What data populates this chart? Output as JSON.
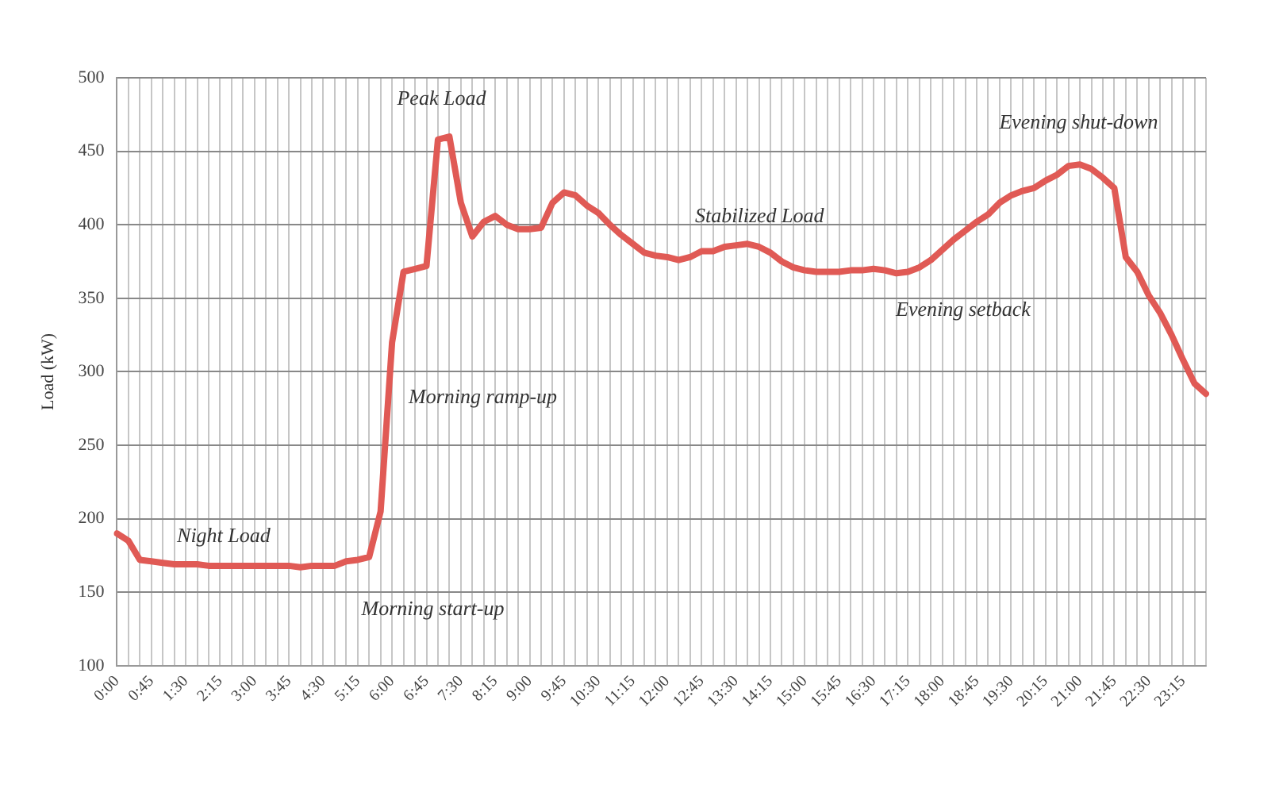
{
  "chart_data": {
    "type": "line",
    "ylabel": "Load (kW)",
    "categories": [
      "0:00",
      null,
      null,
      "0:45",
      null,
      null,
      "1:30",
      null,
      null,
      "2:15",
      null,
      null,
      "3:00",
      null,
      null,
      "3:45",
      null,
      null,
      "4:30",
      null,
      null,
      "5:15",
      null,
      null,
      "6:00",
      null,
      null,
      "6:45",
      null,
      null,
      "7:30",
      null,
      null,
      "8:15",
      null,
      null,
      "9:00",
      null,
      null,
      "9:45",
      null,
      null,
      "10:30",
      null,
      null,
      "11:15",
      null,
      null,
      "12:00",
      null,
      null,
      "12:45",
      null,
      null,
      "13:30",
      null,
      null,
      "14:15",
      null,
      null,
      "15:00",
      null,
      null,
      "15:45",
      null,
      null,
      "16:30",
      null,
      null,
      "17:15",
      null,
      null,
      "18:00",
      null,
      null,
      "18:45",
      null,
      null,
      "19:30",
      null,
      null,
      "20:15",
      null,
      null,
      "21:00",
      null,
      null,
      "21:45",
      null,
      null,
      "22:30",
      null,
      null,
      "23:15",
      null,
      null
    ],
    "series": [
      {
        "color": "#e05a55",
        "values": [
          190,
          185,
          172,
          171,
          170,
          169,
          169,
          169,
          168,
          168,
          168,
          168,
          168,
          168,
          168,
          168,
          167,
          168,
          168,
          168,
          171,
          172,
          174,
          205,
          320,
          368,
          370,
          372,
          458,
          460,
          415,
          392,
          402,
          406,
          400,
          397,
          397,
          398,
          415,
          422,
          420,
          413,
          408,
          400,
          393,
          387,
          381,
          379,
          378,
          376,
          378,
          382,
          382,
          385,
          386,
          387,
          385,
          381,
          375,
          371,
          369,
          368,
          368,
          368,
          369,
          369,
          370,
          369,
          367,
          368,
          371,
          376,
          383,
          390,
          396,
          402,
          407,
          415,
          420,
          423,
          425,
          430,
          434,
          440,
          441,
          438,
          432,
          425,
          378,
          368,
          352,
          340,
          325,
          308,
          292,
          285
        ]
      }
    ],
    "ylim": [
      100,
      500
    ],
    "yticks": [
      100,
      150,
      200,
      250,
      300,
      350,
      400,
      450,
      500
    ],
    "grid": true,
    "legend": false,
    "marker": "none",
    "line_style": "solid",
    "annotations": [
      "Night Load",
      "Morning start-up",
      "Morning ramp-up",
      "Peak Load",
      "Stabilized Load",
      "Evening setback",
      "Evening shut-down"
    ]
  }
}
